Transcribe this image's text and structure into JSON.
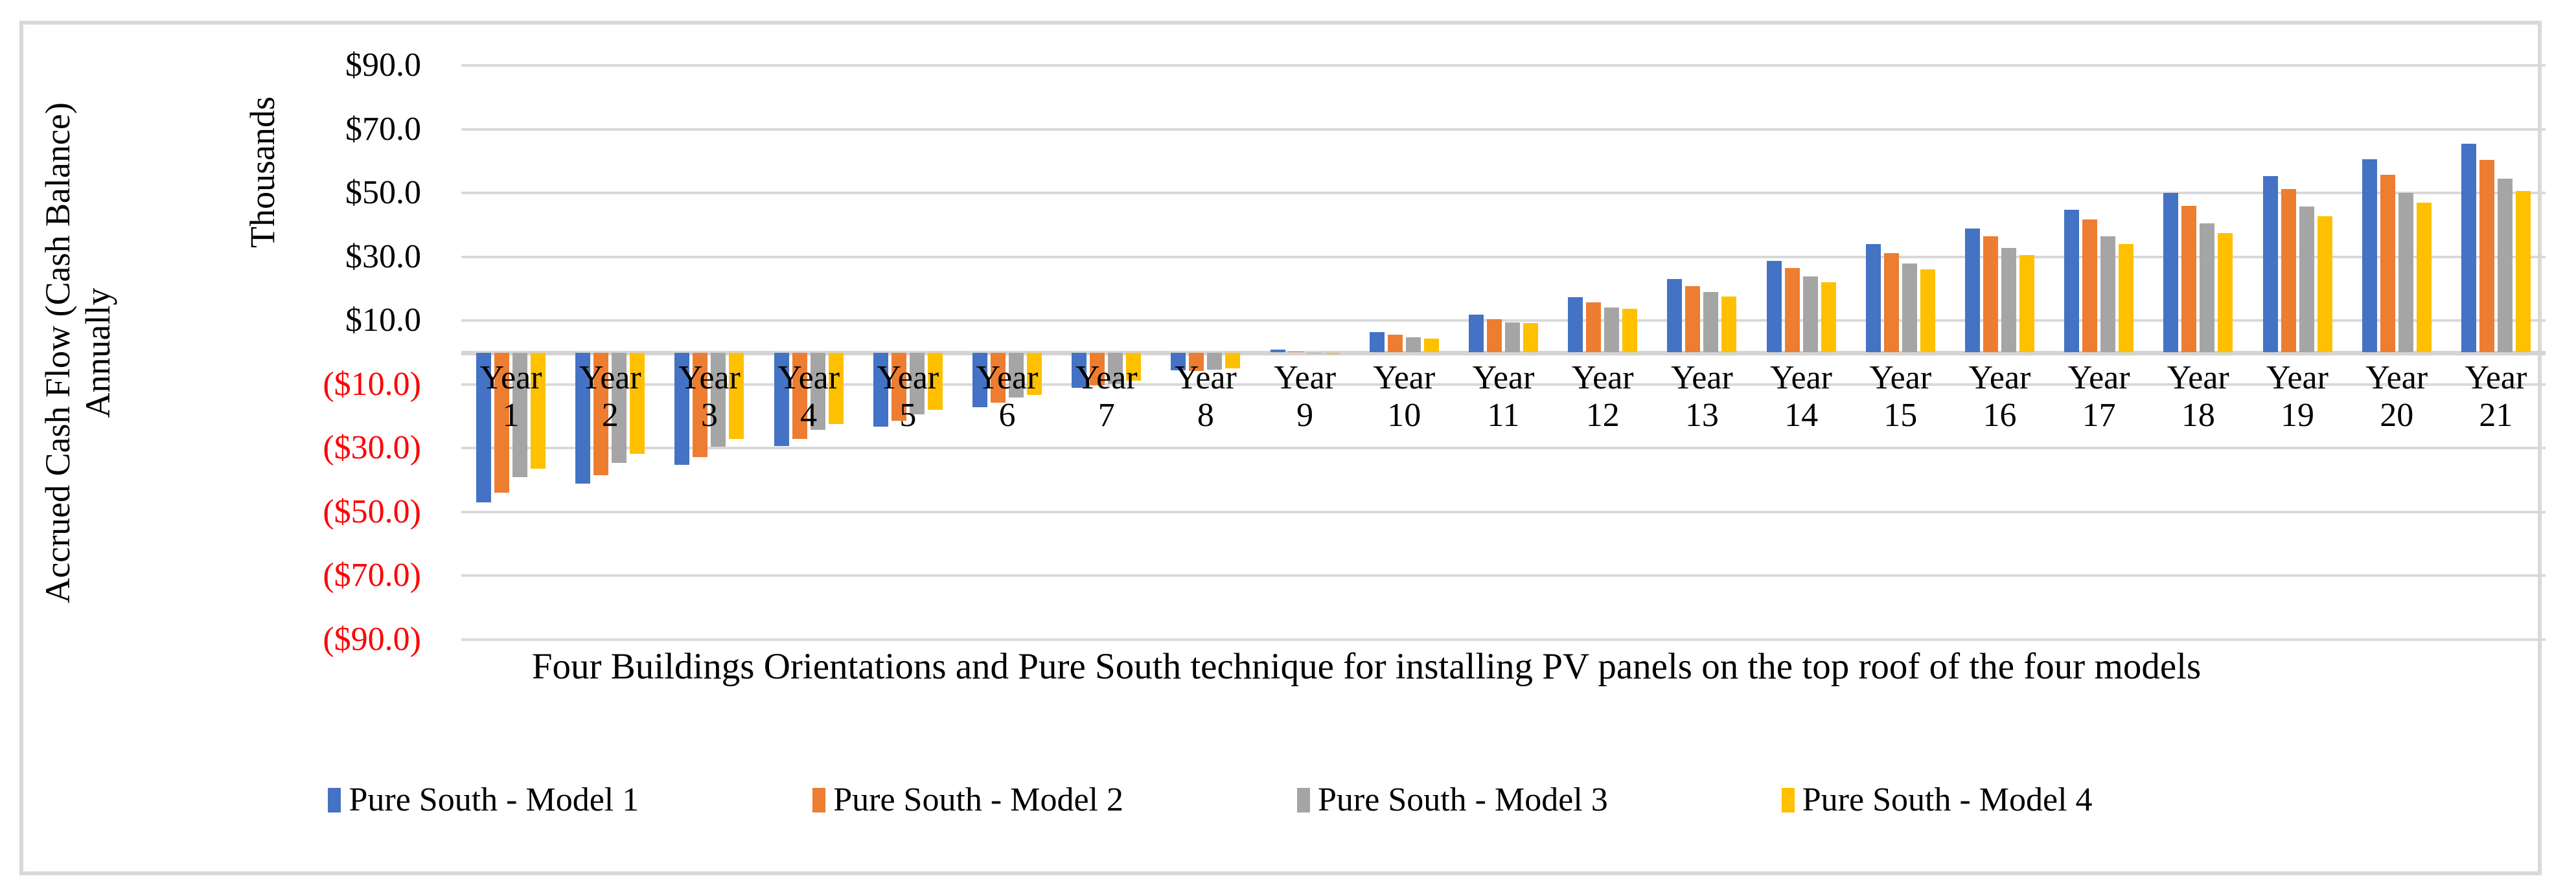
{
  "chart_title": "",
  "y_axis": {
    "title_line1": "Accrued Cash Flow (Cash Balance)",
    "title_line2": "Annually",
    "units_label": "Thousands",
    "ticks": [
      {
        "value": 90,
        "label": "$90.0"
      },
      {
        "value": 70,
        "label": "$70.0"
      },
      {
        "value": 50,
        "label": "$50.0"
      },
      {
        "value": 30,
        "label": "$30.0"
      },
      {
        "value": 10,
        "label": "$10.0"
      },
      {
        "value": -10,
        "label": "($10.0)"
      },
      {
        "value": -30,
        "label": "($30.0)"
      },
      {
        "value": -50,
        "label": "($50.0)"
      },
      {
        "value": -70,
        "label": "($70.0)"
      },
      {
        "value": -90,
        "label": "($90.0)"
      }
    ],
    "negative_tick_color": "#FF0000"
  },
  "x_axis": {
    "title": "Four Buildings Orientations and Pure South technique for installing PV panels on the top roof of the four models",
    "category_word": "Year"
  },
  "legend": {
    "items": [
      {
        "label": "Pure South - Model 1",
        "color": "#4472C4"
      },
      {
        "label": "Pure South - Model 2",
        "color": "#ED7D31"
      },
      {
        "label": "Pure South - Model 3",
        "color": "#A5A5A5"
      },
      {
        "label": "Pure South - Model 4",
        "color": "#FFC000"
      }
    ]
  },
  "colors": {
    "gridline": "#D9D9D9",
    "axis_line": "#D4D4D4",
    "chart_border": "#D9D9D9",
    "negative_labels": "#FF0000"
  },
  "chart_data": {
    "type": "bar",
    "title": "",
    "xlabel": "Four Buildings Orientations and Pure South technique for installing PV panels on the top roof of the four models",
    "ylabel": "Accrued Cash Flow (Cash Balance) Annually",
    "y_display_units": "Thousands",
    "ylim": [
      -90,
      90
    ],
    "y_gridline_step": 20,
    "grid": true,
    "legend_position": "bottom",
    "categories": [
      "Year 1",
      "Year 2",
      "Year 3",
      "Year 4",
      "Year 5",
      "Year 6",
      "Year 7",
      "Year 8",
      "Year 9",
      "Year 10",
      "Year 11",
      "Year 12",
      "Year 13",
      "Year 14",
      "Year 15",
      "Year 16",
      "Year 17",
      "Year 18",
      "Year 19",
      "Year 20",
      "Year 21"
    ],
    "series": [
      {
        "name": "Pure South - Model 1",
        "color": "#4472C4",
        "values": [
          -47.0,
          -41.0,
          -35.3,
          -29.3,
          -23.2,
          -17.1,
          -11.0,
          -5.6,
          0.9,
          6.3,
          11.9,
          17.4,
          23.0,
          28.7,
          33.9,
          38.9,
          44.8,
          50.0,
          55.2,
          60.5,
          65.5
        ]
      },
      {
        "name": "Pure South - Model 2",
        "color": "#ED7D31",
        "values": [
          -44.0,
          -38.5,
          -32.8,
          -27.0,
          -21.5,
          -15.8,
          -10.2,
          -5.7,
          0.3,
          5.5,
          10.5,
          15.8,
          20.8,
          26.4,
          31.1,
          36.5,
          41.7,
          45.9,
          51.3,
          55.7,
          60.4
        ]
      },
      {
        "name": "Pure South - Model 3",
        "color": "#A5A5A5",
        "values": [
          -39.0,
          -34.5,
          -29.5,
          -24.2,
          -19.4,
          -14.2,
          -9.8,
          -5.3,
          -0.2,
          4.8,
          9.5,
          14.2,
          18.9,
          23.8,
          28.0,
          32.8,
          36.4,
          40.5,
          45.7,
          50.0,
          54.5
        ]
      },
      {
        "name": "Pure South - Model 4",
        "color": "#FFC000",
        "values": [
          -36.5,
          -31.8,
          -27.1,
          -22.4,
          -17.9,
          -13.2,
          -8.9,
          -5.0,
          -0.5,
          4.4,
          9.2,
          13.6,
          17.5,
          22.1,
          26.1,
          30.6,
          33.9,
          37.5,
          42.7,
          46.9,
          50.6
        ]
      }
    ]
  }
}
